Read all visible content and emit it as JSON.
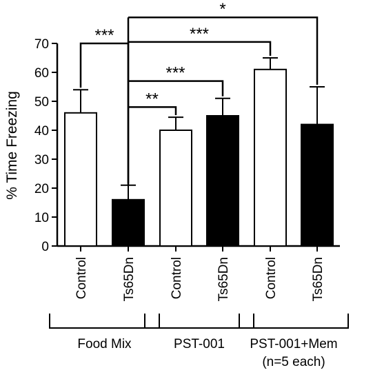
{
  "chart_data": {
    "type": "bar",
    "ylabel": "% Time Freezing",
    "ylim": [
      0,
      70
    ],
    "yticks": [
      "0",
      "10",
      "20",
      "30",
      "40",
      "50",
      "60",
      "70"
    ],
    "categories": [
      "Control",
      "Ts65Dn",
      "Control",
      "Ts65Dn",
      "Control",
      "Ts65Dn"
    ],
    "values": [
      46,
      16,
      40,
      45,
      61,
      42
    ],
    "errors": [
      8,
      5,
      4.5,
      6,
      4,
      13
    ],
    "fills": [
      "#ffffff",
      "#000000",
      "#ffffff",
      "#000000",
      "#ffffff",
      "#000000"
    ],
    "groups": [
      {
        "label": "Food Mix",
        "sublabel": ""
      },
      {
        "label": "PST-001",
        "sublabel": ""
      },
      {
        "label": "PST-001+Mem",
        "sublabel": "(n=5 each)"
      }
    ],
    "significance": [
      {
        "from": 0,
        "to": 1,
        "level": 70,
        "label": "***"
      },
      {
        "from": 1,
        "to": 5,
        "level": 79,
        "label": "*"
      },
      {
        "from": 1,
        "to": 4,
        "level": 70.5,
        "label": "***"
      },
      {
        "from": 1,
        "to": 3,
        "level": 57,
        "label": "***"
      },
      {
        "from": 1,
        "to": 2,
        "level": 48,
        "label": "**"
      }
    ],
    "grid": false,
    "legend": "none"
  }
}
